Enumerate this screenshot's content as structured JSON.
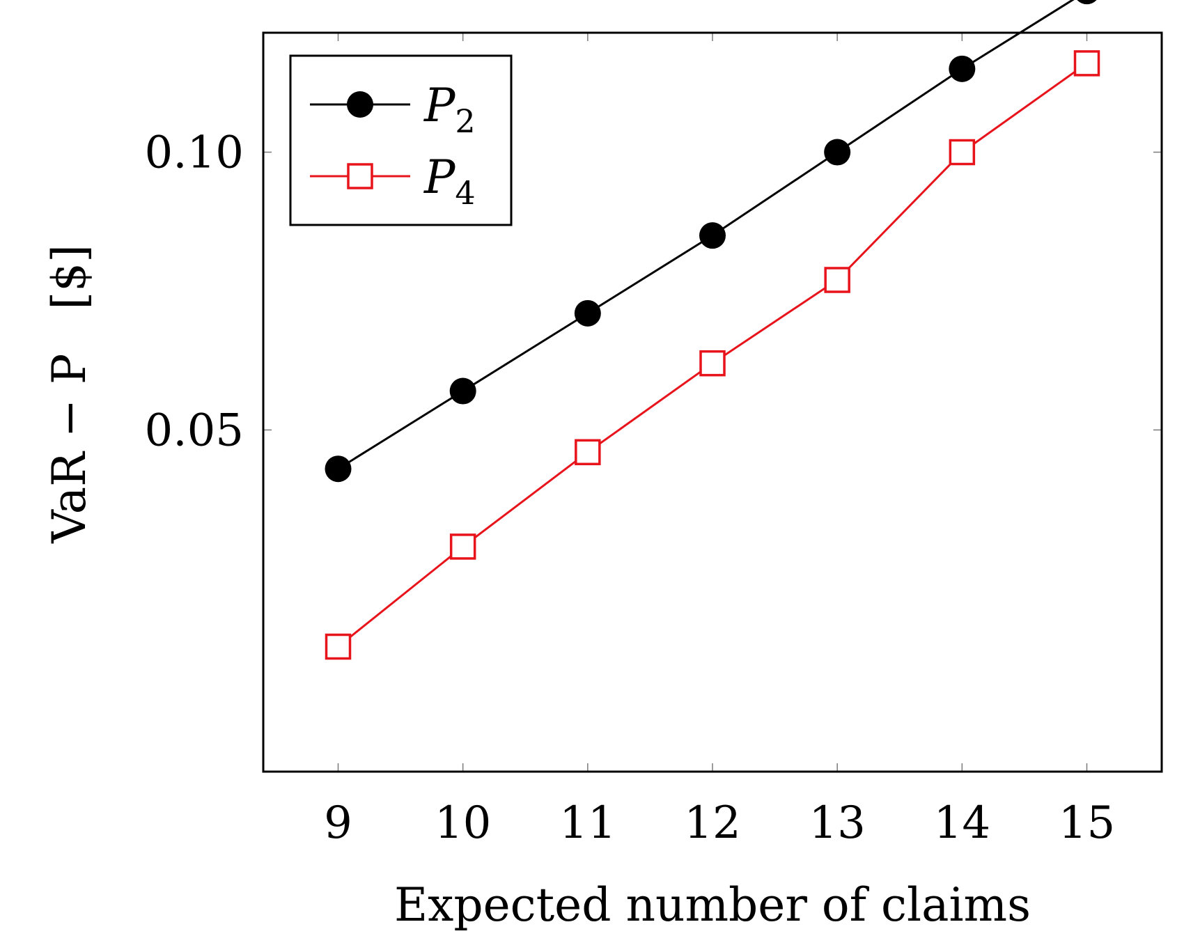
{
  "chart_data": {
    "type": "line",
    "xlabel": "Expected number of claims",
    "ylabel": "VaR − P   [$]",
    "x": [
      9,
      10,
      11,
      12,
      13,
      14,
      15
    ],
    "xlim": [
      8.4,
      15.6
    ],
    "ylim": [
      -0.0115,
      0.1215
    ],
    "x_ticks": [
      9,
      10,
      11,
      12,
      13,
      14,
      15
    ],
    "x_tick_labels": [
      "9",
      "10",
      "11",
      "12",
      "13",
      "14",
      "15"
    ],
    "y_ticks": [
      0.05,
      0.1
    ],
    "y_tick_labels": [
      "0.05",
      "0.10"
    ],
    "grid": false,
    "legend_position": "top-left",
    "series": [
      {
        "name": "P",
        "subscript": "2",
        "color": "#000000",
        "marker": "filled-circle",
        "values": [
          0.043,
          0.057,
          0.071,
          0.085,
          0.1,
          0.115,
          0.129
        ]
      },
      {
        "name": "P",
        "subscript": "4",
        "color": "#e8141c",
        "marker": "open-square",
        "values": [
          0.011,
          0.029,
          0.046,
          0.062,
          0.077,
          0.1,
          0.116
        ]
      }
    ]
  }
}
